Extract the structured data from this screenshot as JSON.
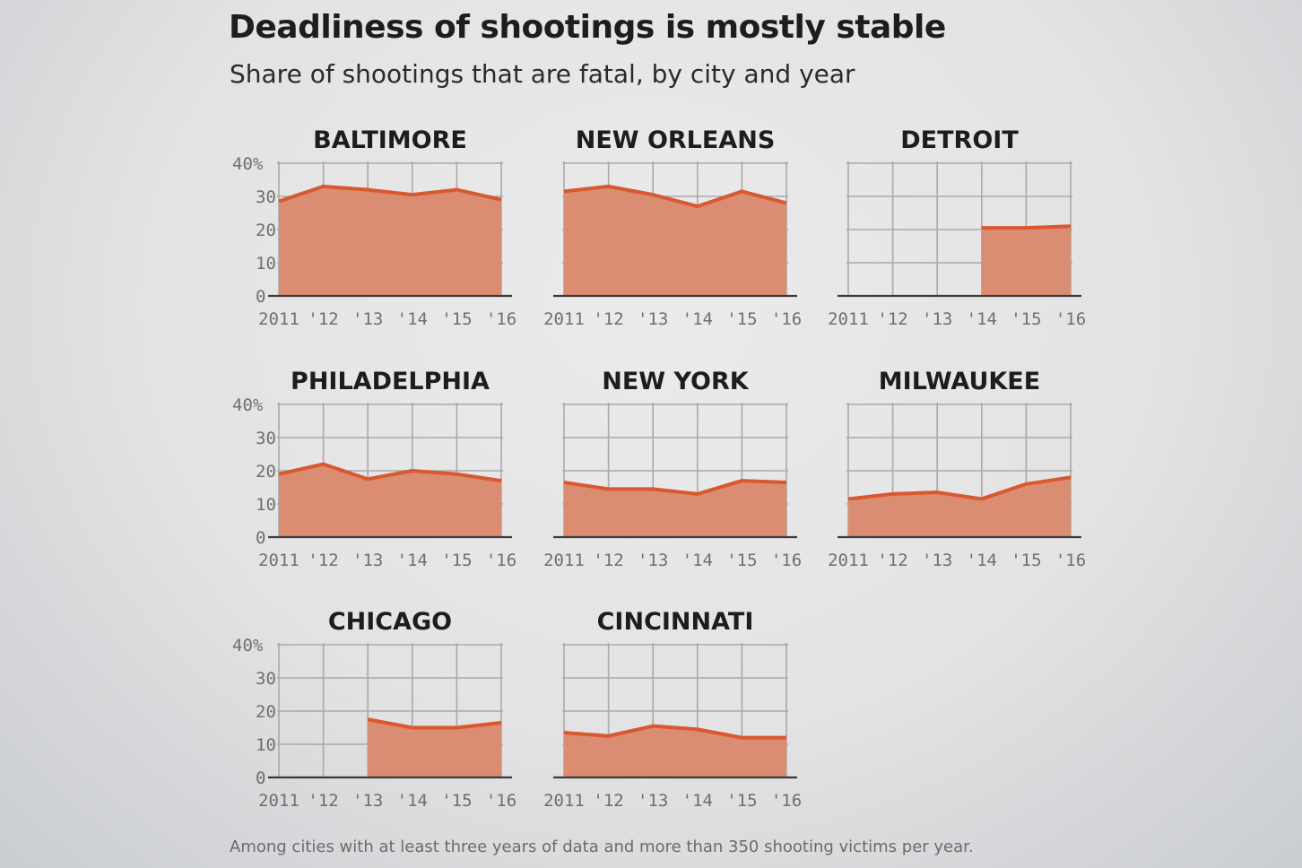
{
  "title": "Deadliness of shootings is mostly stable",
  "subtitle": "Share of shootings that are fatal, by city and year",
  "footnote": "Among cities with at least three years of data and more than 350 shooting victims per year.",
  "colors": {
    "fill": "#da8d72",
    "line": "#d9582f",
    "grid": "#a9a9a9",
    "axis": "#3a3a3a"
  },
  "chart_data": [
    {
      "type": "area",
      "title": "BALTIMORE",
      "x": [
        "2011",
        "'12",
        "'13",
        "'14",
        "'15",
        "'16"
      ],
      "values": [
        28.5,
        33,
        32,
        30.5,
        32,
        29
      ],
      "yticks": [
        "40%",
        "30",
        "20",
        "10",
        "0"
      ],
      "ylim": [
        0,
        40
      ]
    },
    {
      "type": "area",
      "title": "NEW ORLEANS",
      "x": [
        "2011",
        "'12",
        "'13",
        "'14",
        "'15",
        "'16"
      ],
      "values": [
        31.5,
        33,
        30.5,
        27,
        31.5,
        28
      ],
      "ylim": [
        0,
        40
      ]
    },
    {
      "type": "area",
      "title": "DETROIT",
      "x": [
        "2011",
        "'12",
        "'13",
        "'14",
        "'15",
        "'16"
      ],
      "values": [
        null,
        null,
        null,
        20.5,
        20.5,
        21
      ],
      "ylim": [
        0,
        40
      ]
    },
    {
      "type": "area",
      "title": "PHILADELPHIA",
      "x": [
        "2011",
        "'12",
        "'13",
        "'14",
        "'15",
        "'16"
      ],
      "values": [
        19,
        22,
        17.5,
        20,
        19,
        17
      ],
      "yticks": [
        "40%",
        "30",
        "20",
        "10",
        "0"
      ],
      "ylim": [
        0,
        40
      ]
    },
    {
      "type": "area",
      "title": "NEW YORK",
      "x": [
        "2011",
        "'12",
        "'13",
        "'14",
        "'15",
        "'16"
      ],
      "values": [
        16.5,
        14.5,
        14.5,
        13,
        17,
        16.5
      ],
      "ylim": [
        0,
        40
      ]
    },
    {
      "type": "area",
      "title": "MILWAUKEE",
      "x": [
        "2011",
        "'12",
        "'13",
        "'14",
        "'15",
        "'16"
      ],
      "values": [
        11.5,
        13,
        13.5,
        11.5,
        16,
        18
      ],
      "ylim": [
        0,
        40
      ]
    },
    {
      "type": "area",
      "title": "CHICAGO",
      "x": [
        "2011",
        "'12",
        "'13",
        "'14",
        "'15",
        "'16"
      ],
      "values": [
        null,
        null,
        17.5,
        15,
        15,
        16.5
      ],
      "yticks": [
        "40%",
        "30",
        "20",
        "10",
        "0"
      ],
      "ylim": [
        0,
        40
      ]
    },
    {
      "type": "area",
      "title": "CINCINNATI",
      "x": [
        "2011",
        "'12",
        "'13",
        "'14",
        "'15",
        "'16"
      ],
      "values": [
        13.5,
        12.5,
        15.5,
        14.5,
        12,
        12
      ],
      "ylim": [
        0,
        40
      ]
    }
  ]
}
